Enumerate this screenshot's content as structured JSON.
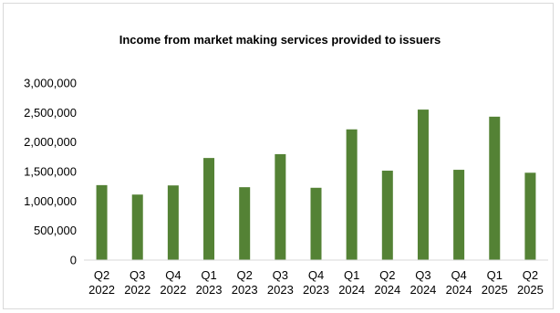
{
  "chart_data": {
    "type": "bar",
    "title": "Income from market making services provided to issuers",
    "xlabel": "",
    "ylabel": "",
    "categories": [
      [
        "Q2",
        "2022"
      ],
      [
        "Q3",
        "2022"
      ],
      [
        "Q4",
        "2022"
      ],
      [
        "Q1",
        "2023"
      ],
      [
        "Q2",
        "2023"
      ],
      [
        "Q3",
        "2023"
      ],
      [
        "Q4",
        "2023"
      ],
      [
        "Q1",
        "2024"
      ],
      [
        "Q2",
        "2024"
      ],
      [
        "Q3",
        "2024"
      ],
      [
        "Q4",
        "2024"
      ],
      [
        "Q1",
        "2025"
      ],
      [
        "Q2",
        "2025"
      ]
    ],
    "values": [
      1270000,
      1110000,
      1265000,
      1730000,
      1235000,
      1795000,
      1225000,
      2215000,
      1515000,
      2550000,
      1530000,
      2430000,
      1480000
    ],
    "ylim": [
      0,
      3000000
    ],
    "yticks": [
      "0",
      "500,000",
      "1,000,000",
      "1,500,000",
      "2,000,000",
      "2,500,000",
      "3,000,000"
    ],
    "grid": false,
    "legend": "none",
    "bar_color": "#548235"
  }
}
